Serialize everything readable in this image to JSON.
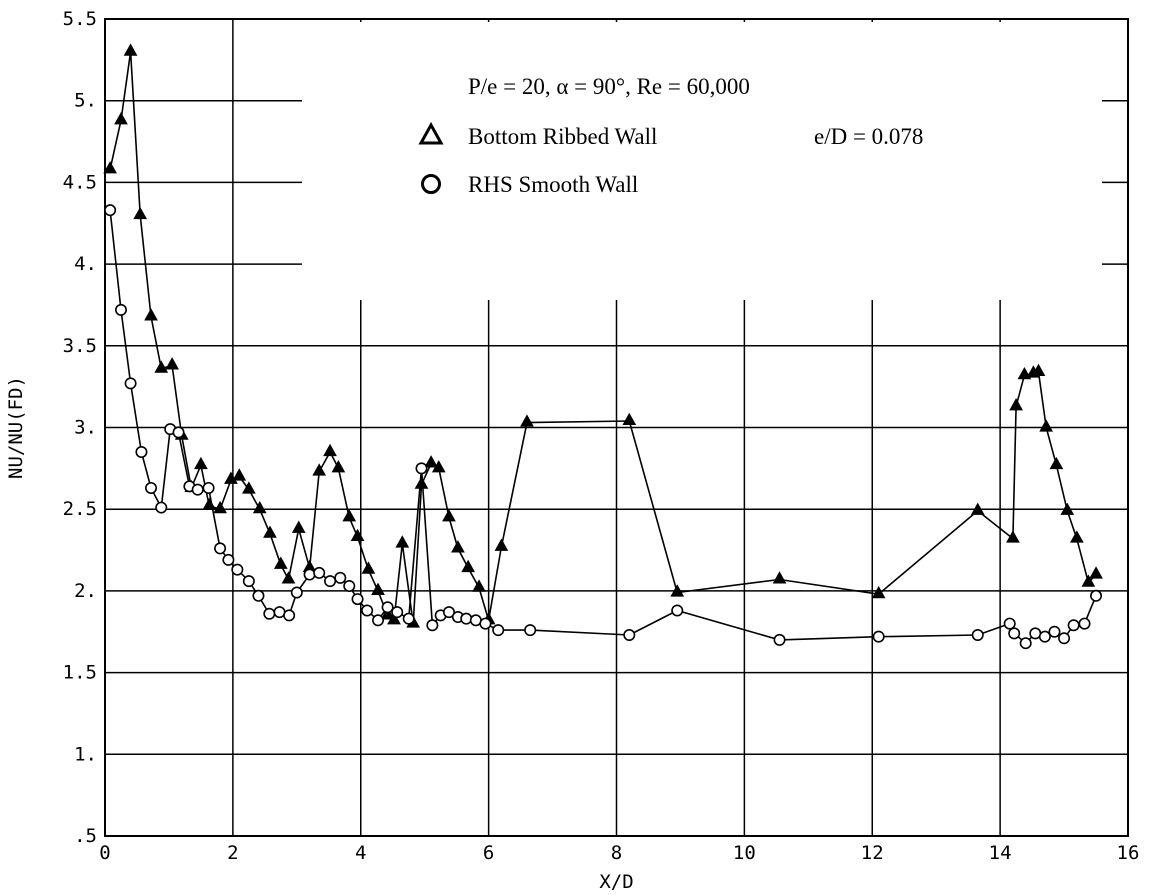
{
  "chart_data": {
    "type": "line",
    "title": "",
    "xlabel": "X/D",
    "ylabel": "NU/NU(FD)",
    "xlim": [
      0,
      16
    ],
    "ylim": [
      0.5,
      5.5
    ],
    "x_ticks": [
      {
        "value": 0,
        "label": "0"
      },
      {
        "value": 2,
        "label": "2"
      },
      {
        "value": 4,
        "label": "4"
      },
      {
        "value": 6,
        "label": "6"
      },
      {
        "value": 8,
        "label": "8"
      },
      {
        "value": 10,
        "label": "10"
      },
      {
        "value": 12,
        "label": "12"
      },
      {
        "value": 14,
        "label": "14"
      },
      {
        "value": 16,
        "label": "16"
      }
    ],
    "y_ticks": [
      {
        "value": 0.5,
        "label": ".5"
      },
      {
        "value": 1,
        "label": "1."
      },
      {
        "value": 1.5,
        "label": "1.5"
      },
      {
        "value": 2,
        "label": "2."
      },
      {
        "value": 2.5,
        "label": "2.5"
      },
      {
        "value": 3,
        "label": "3."
      },
      {
        "value": 3.5,
        "label": "3.5"
      },
      {
        "value": 4,
        "label": "4."
      },
      {
        "value": 4.5,
        "label": "4.5"
      },
      {
        "value": 5,
        "label": "5."
      },
      {
        "value": 5.5,
        "label": "5.5"
      }
    ],
    "grid": true,
    "legend_position": "top-right",
    "annotations": [
      "P/e = 20, α = 90°, Re = 60,000",
      "e/D = 0.078"
    ],
    "series": [
      {
        "name": "Bottom Ribbed Wall",
        "marker": "triangle",
        "points": [
          [
            0.08,
            4.58
          ],
          [
            0.25,
            4.88
          ],
          [
            0.4,
            5.3
          ],
          [
            0.55,
            4.3
          ],
          [
            0.72,
            3.68
          ],
          [
            0.88,
            3.36
          ],
          [
            1.05,
            3.38
          ],
          [
            1.2,
            2.95
          ],
          [
            1.35,
            2.63
          ],
          [
            1.5,
            2.77
          ],
          [
            1.63,
            2.52
          ],
          [
            1.8,
            2.5
          ],
          [
            1.97,
            2.68
          ],
          [
            2.1,
            2.7
          ],
          [
            2.25,
            2.62
          ],
          [
            2.42,
            2.5
          ],
          [
            2.58,
            2.35
          ],
          [
            2.75,
            2.16
          ],
          [
            2.87,
            2.07
          ],
          [
            3.03,
            2.38
          ],
          [
            3.2,
            2.14
          ],
          [
            3.35,
            2.73
          ],
          [
            3.52,
            2.85
          ],
          [
            3.65,
            2.75
          ],
          [
            3.82,
            2.45
          ],
          [
            3.95,
            2.33
          ],
          [
            4.12,
            2.13
          ],
          [
            4.27,
            2.0
          ],
          [
            4.42,
            1.85
          ],
          [
            4.52,
            1.82
          ],
          [
            4.65,
            2.29
          ],
          [
            4.82,
            1.8
          ],
          [
            4.95,
            2.65
          ],
          [
            5.1,
            2.78
          ],
          [
            5.22,
            2.75
          ],
          [
            5.38,
            2.45
          ],
          [
            5.52,
            2.26
          ],
          [
            5.68,
            2.14
          ],
          [
            5.85,
            2.02
          ],
          [
            6.0,
            1.82
          ],
          [
            6.2,
            2.27
          ],
          [
            6.6,
            3.03
          ],
          [
            8.2,
            3.04
          ],
          [
            8.95,
            1.99
          ],
          [
            10.55,
            2.07
          ],
          [
            12.1,
            1.98
          ],
          [
            13.65,
            2.49
          ],
          [
            14.2,
            2.32
          ],
          [
            14.25,
            3.13
          ],
          [
            14.38,
            3.32
          ],
          [
            14.52,
            3.33
          ],
          [
            14.6,
            3.34
          ],
          [
            14.72,
            3.0
          ],
          [
            14.88,
            2.77
          ],
          [
            15.05,
            2.49
          ],
          [
            15.2,
            2.32
          ],
          [
            15.38,
            2.05
          ],
          [
            15.5,
            2.1
          ]
        ]
      },
      {
        "name": "RHS Smooth Wall",
        "marker": "circle",
        "points": [
          [
            0.08,
            4.33
          ],
          [
            0.25,
            3.72
          ],
          [
            0.4,
            3.27
          ],
          [
            0.57,
            2.85
          ],
          [
            0.72,
            2.63
          ],
          [
            0.88,
            2.51
          ],
          [
            1.02,
            2.99
          ],
          [
            1.15,
            2.97
          ],
          [
            1.32,
            2.64
          ],
          [
            1.45,
            2.62
          ],
          [
            1.62,
            2.63
          ],
          [
            1.8,
            2.26
          ],
          [
            1.93,
            2.19
          ],
          [
            2.07,
            2.13
          ],
          [
            2.25,
            2.06
          ],
          [
            2.4,
            1.97
          ],
          [
            2.57,
            1.86
          ],
          [
            2.73,
            1.87
          ],
          [
            2.88,
            1.85
          ],
          [
            3.0,
            1.99
          ],
          [
            3.2,
            2.1
          ],
          [
            3.35,
            2.11
          ],
          [
            3.52,
            2.06
          ],
          [
            3.68,
            2.08
          ],
          [
            3.82,
            2.03
          ],
          [
            3.95,
            1.95
          ],
          [
            4.1,
            1.88
          ],
          [
            4.27,
            1.82
          ],
          [
            4.42,
            1.9
          ],
          [
            4.57,
            1.87
          ],
          [
            4.75,
            1.83
          ],
          [
            4.95,
            2.75
          ],
          [
            5.12,
            1.79
          ],
          [
            5.25,
            1.85
          ],
          [
            5.38,
            1.87
          ],
          [
            5.52,
            1.84
          ],
          [
            5.65,
            1.83
          ],
          [
            5.8,
            1.82
          ],
          [
            5.95,
            1.8
          ],
          [
            6.15,
            1.76
          ],
          [
            6.65,
            1.76
          ],
          [
            8.2,
            1.73
          ],
          [
            8.95,
            1.88
          ],
          [
            10.55,
            1.7
          ],
          [
            12.1,
            1.72
          ],
          [
            13.65,
            1.73
          ],
          [
            14.15,
            1.8
          ],
          [
            14.22,
            1.74
          ],
          [
            14.4,
            1.68
          ],
          [
            14.55,
            1.74
          ],
          [
            14.7,
            1.72
          ],
          [
            14.85,
            1.75
          ],
          [
            15.0,
            1.71
          ],
          [
            15.15,
            1.79
          ],
          [
            15.32,
            1.8
          ],
          [
            15.5,
            1.97
          ]
        ]
      }
    ]
  }
}
